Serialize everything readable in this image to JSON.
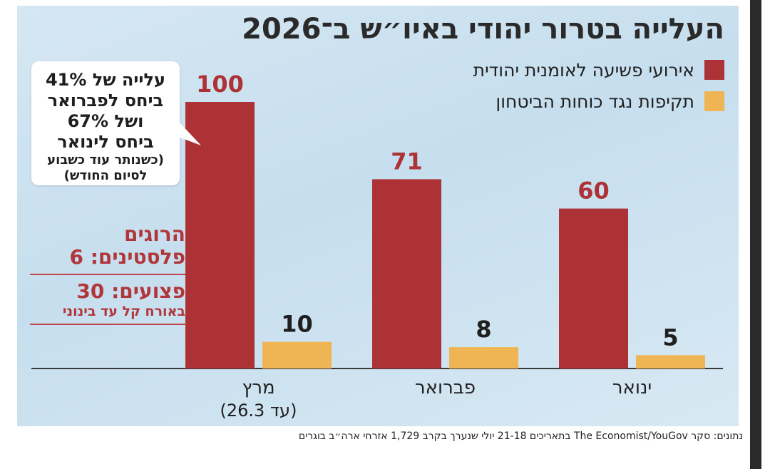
{
  "title": "העלייה בטרור יהודי באיו״ש ב־2026",
  "chart_data": {
    "type": "bar",
    "title": "העלייה בטרור יהודי באיו״ש ב־2026",
    "categories": [
      "מרץ",
      "פברואר",
      "ינואר"
    ],
    "category_sublabels": [
      "(עד 26.3)",
      "",
      ""
    ],
    "series": [
      {
        "name": "אירועי פשיעה לאומנית יהודית",
        "color": "#ad3236",
        "values": [
          100,
          71,
          60
        ]
      },
      {
        "name": "תקיפות נגד כוחות הביטחון",
        "color": "#efb554",
        "values": [
          10,
          8,
          5
        ]
      }
    ],
    "ylim": [
      0,
      100
    ],
    "xlabel": "",
    "ylabel": "",
    "grid": false,
    "legend_position": "top-right",
    "data_labels": true
  },
  "callout": {
    "lines": [
      "עלייה של 41%",
      "ביחס לפברואר",
      "ושל 67%",
      "ביחס לינואר"
    ],
    "note_lines": [
      "(כשנותר עוד כשבוע",
      "לסיום החודש)"
    ]
  },
  "stats": {
    "killed_label": "הרוגים",
    "killed_value": "פלסטינים: 6",
    "wounded_value": "פצועים: 30",
    "wounded_note": "באורח קל עד בינוני"
  },
  "source": {
    "prefix": "נתונים: סקר",
    "brand": "The Economist/YouGov",
    "rest": "בתאריכים 21-18 יולי שנערך בקרב 1,729 אזרחי ארה״ב בוגרים"
  }
}
